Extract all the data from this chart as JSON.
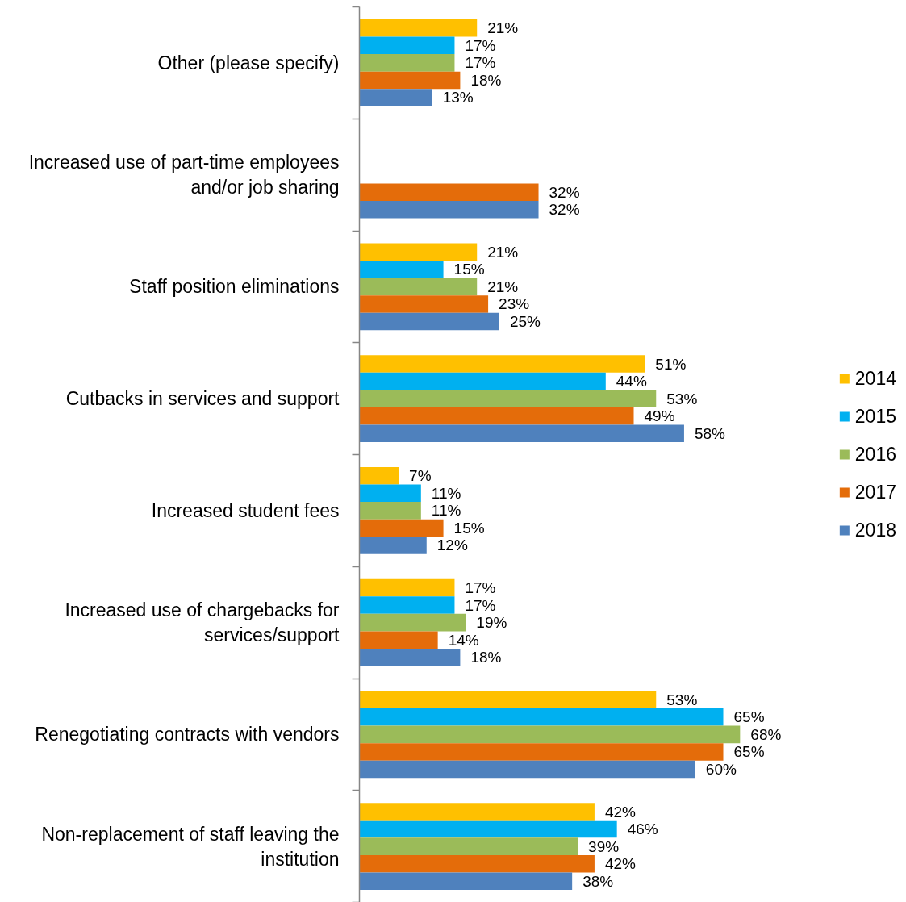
{
  "chart_data": {
    "type": "bar",
    "orientation": "horizontal",
    "legend": "right",
    "categories": [
      "Other (please specify)",
      "Increased use of part-time employees and/or job sharing",
      "Staff position eliminations",
      "Cutbacks in services and support",
      "Increased student fees",
      "Increased use of chargebacks for services/support",
      "Renegotiating contracts with vendors",
      "Non-replacement of staff leaving the institution"
    ],
    "series": [
      {
        "name": "2014",
        "color": "#ffc000",
        "values": [
          21,
          null,
          21,
          51,
          7,
          17,
          53,
          42
        ],
        "value_labels": [
          "21%",
          null,
          "21%",
          "51%",
          "7%",
          "17%",
          "53%",
          "42%"
        ]
      },
      {
        "name": "2015",
        "color": "#00b0f0",
        "values": [
          17,
          null,
          15,
          44,
          11,
          17,
          65,
          46
        ],
        "value_labels": [
          "17%",
          null,
          "15%",
          "44%",
          "11%",
          "17%",
          "65%",
          "46%"
        ]
      },
      {
        "name": "2016",
        "color": "#9bbb59",
        "values": [
          17,
          null,
          21,
          53,
          11,
          19,
          68,
          39
        ],
        "value_labels": [
          "17%",
          null,
          "21%",
          "53%",
          "11%",
          "19%",
          "68%",
          "39%"
        ]
      },
      {
        "name": "2017",
        "color": "#e46c0a",
        "values": [
          18,
          32,
          23,
          49,
          15,
          14,
          65,
          42
        ],
        "value_labels": [
          "18%",
          "32%",
          "23%",
          "49%",
          "15%",
          "14%",
          "65%",
          "42%"
        ]
      },
      {
        "name": "2018",
        "color": "#4f81bd",
        "values": [
          13,
          32,
          25,
          58,
          12,
          18,
          60,
          38
        ],
        "value_labels": [
          "13%",
          "32%",
          "25%",
          "58%",
          "12%",
          "18%",
          "60%",
          "38%"
        ]
      }
    ]
  }
}
